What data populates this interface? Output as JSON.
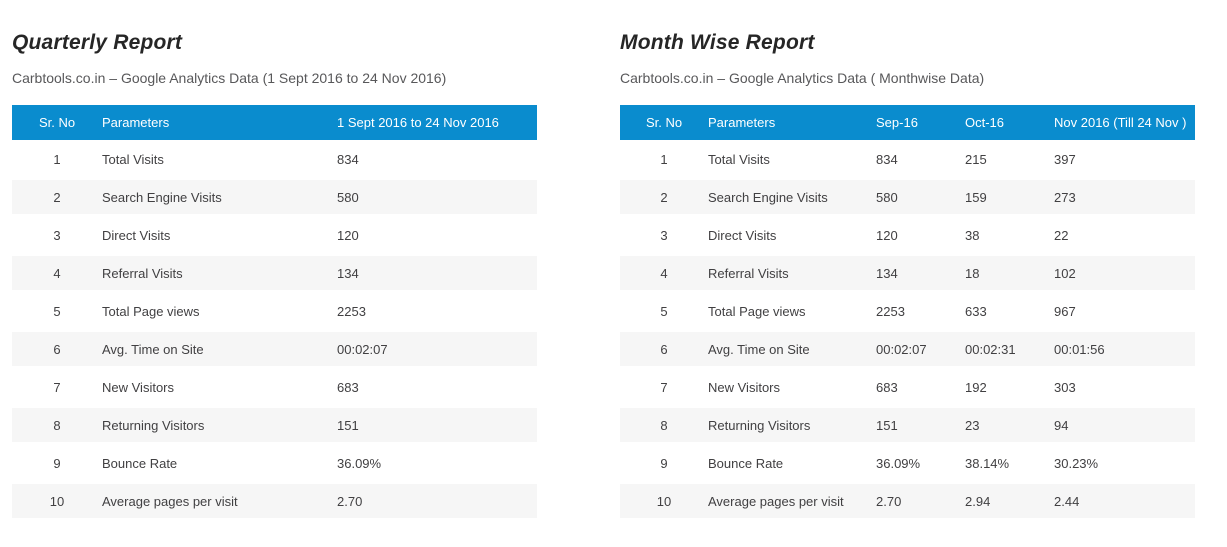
{
  "colors": {
    "header_bg": "#0a8cce",
    "header_text": "#ffffff",
    "stripe_row_bg": "#f6f6f6",
    "body_text": "#414042",
    "title_text": "#262626",
    "subtitle_text": "#58585a"
  },
  "quarterly": {
    "title": "Quarterly Report",
    "subtitle": "Carbtools.co.in – Google Analytics Data (1 Sept 2016 to 24 Nov 2016)",
    "columns": [
      "Sr. No",
      "Parameters",
      "1 Sept 2016 to 24 Nov 2016"
    ],
    "rows": [
      [
        "1",
        "Total Visits",
        "834"
      ],
      [
        "2",
        "Search Engine Visits",
        "580"
      ],
      [
        "3",
        "Direct Visits",
        "120"
      ],
      [
        "4",
        "Referral Visits",
        "134"
      ],
      [
        "5",
        "Total Page views",
        "2253"
      ],
      [
        "6",
        "Avg. Time on Site",
        "00:02:07"
      ],
      [
        "7",
        "New Visitors",
        "683"
      ],
      [
        "8",
        "Returning Visitors",
        "151"
      ],
      [
        "9",
        "Bounce Rate",
        "36.09%"
      ],
      [
        "10",
        "Average pages per visit",
        "2.70"
      ]
    ]
  },
  "monthwise": {
    "title": "Month Wise Report",
    "subtitle": "Carbtools.co.in – Google Analytics Data ( Monthwise Data)",
    "columns": [
      "Sr. No",
      "Parameters",
      "Sep-16",
      "Oct-16",
      "Nov 2016 (Till 24 Nov )"
    ],
    "rows": [
      [
        "1",
        "Total Visits",
        "834",
        "215",
        "397"
      ],
      [
        "2",
        "Search Engine Visits",
        "580",
        "159",
        "273"
      ],
      [
        "3",
        "Direct Visits",
        "120",
        "38",
        "22"
      ],
      [
        "4",
        "Referral Visits",
        "134",
        "18",
        "102"
      ],
      [
        "5",
        "Total Page views",
        "2253",
        "633",
        "967"
      ],
      [
        "6",
        "Avg. Time on Site",
        "00:02:07",
        "00:02:31",
        "00:01:56"
      ],
      [
        "7",
        "New Visitors",
        "683",
        "192",
        "303"
      ],
      [
        "8",
        "Returning Visitors",
        "151",
        "23",
        "94"
      ],
      [
        "9",
        "Bounce Rate",
        "36.09%",
        "38.14%",
        "30.23%"
      ],
      [
        "10",
        "Average pages per visit",
        "2.70",
        "2.94",
        "2.44"
      ]
    ]
  }
}
